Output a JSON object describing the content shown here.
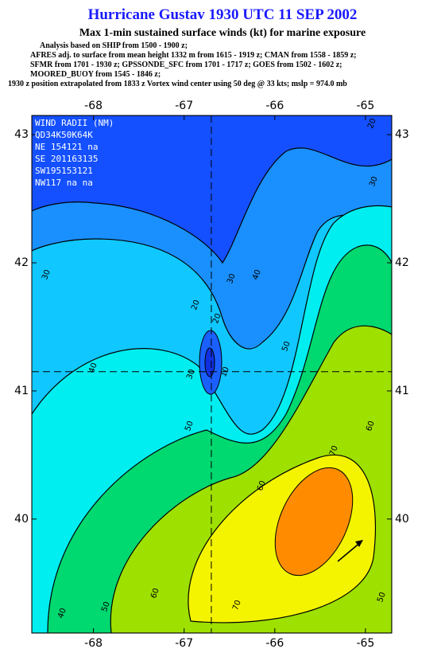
{
  "title": "Hurricane Gustav 1930 UTC 11 SEP 2002",
  "subtitle": "Max 1-min sustained surface winds (kt) for marine exposure",
  "notes": [
    "Analysis based on  SHIP from 1500 - 1900 z;",
    "AFRES adj. to surface from mean height 1332 m from 1615 - 1919 z;  CMAN from 1558 - 1859 z;",
    "SFMR from 1701 - 1930 z;  GPSSONDE_SFC from 1701 - 1717 z;  GOES from 1502 - 1602 z;",
    "MOORED_BUOY from 1545 - 1846 z;",
    "1930 z position extrapolated from 1833 z Vortex wind center using 50 deg @ 33 kts; mslp = 974.0 mb"
  ],
  "map": {
    "xlim": [
      -68.68,
      -64.71
    ],
    "ylim": [
      39.11,
      43.15
    ],
    "xticks": [
      -68,
      -67,
      -66,
      -65
    ],
    "yticks": [
      40,
      41,
      42,
      43
    ],
    "center": {
      "lon": -66.7,
      "lat": 41.15
    },
    "wind_radii": [
      "WIND RADII (NM)",
      "QD34K50K64K",
      "NE 154121 na",
      "SE 201163135",
      "SW195153121",
      "NW117 na na"
    ],
    "contour_labels": [
      20,
      30,
      30,
      20,
      30,
      40,
      20,
      10,
      30,
      40,
      50,
      50,
      60,
      70,
      60,
      60,
      50,
      40,
      70,
      50
    ]
  }
}
